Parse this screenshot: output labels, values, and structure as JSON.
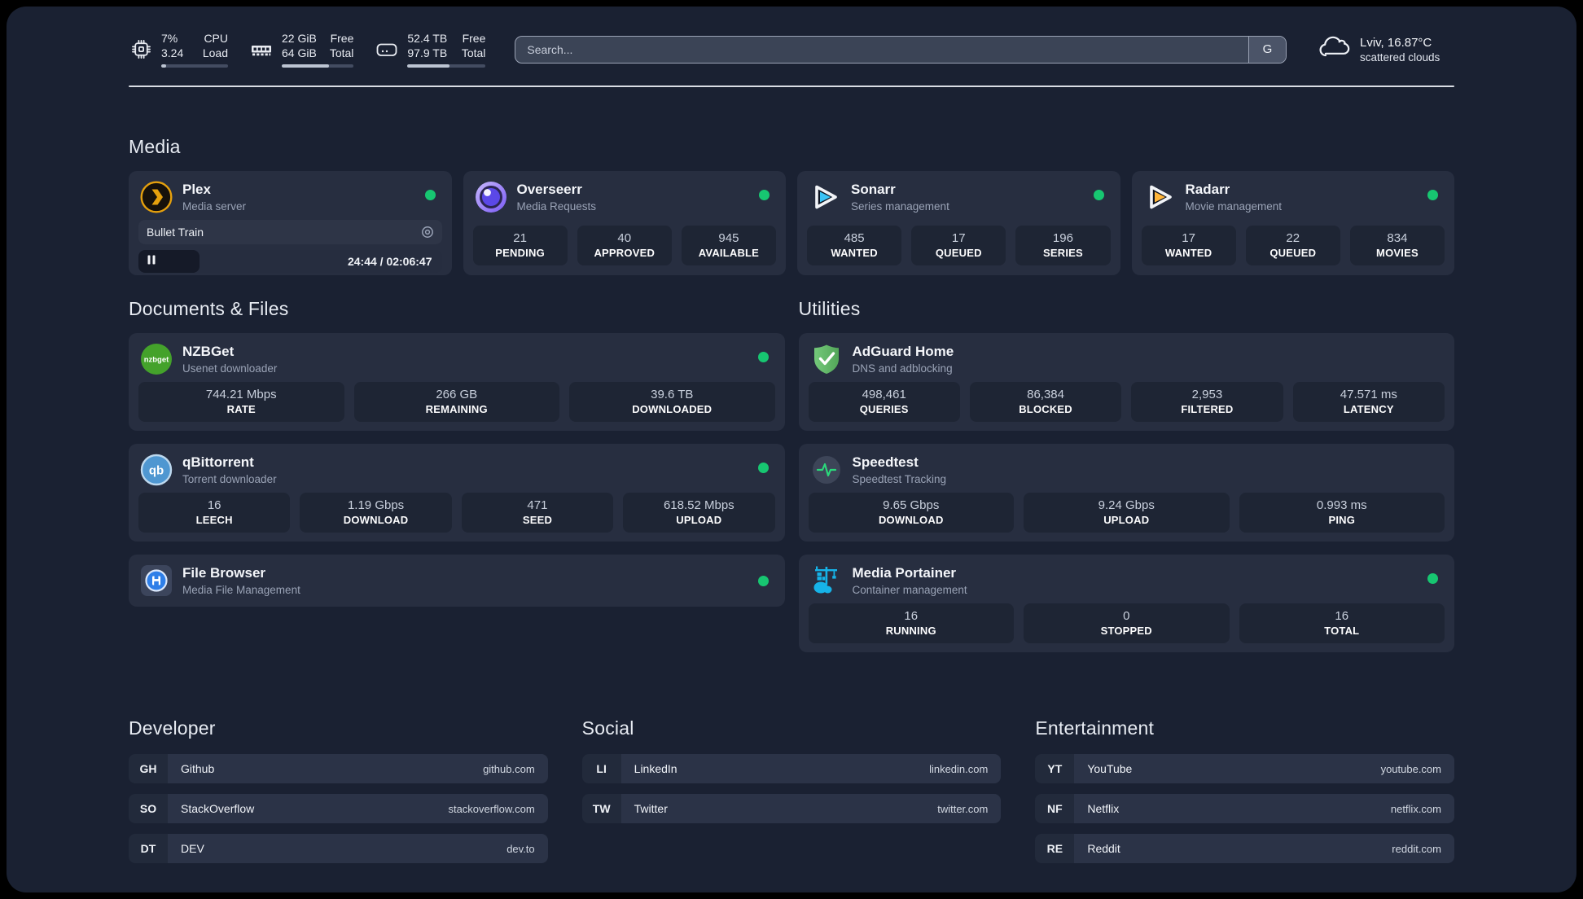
{
  "header": {
    "cpu": {
      "v1": "7%",
      "l1": "CPU",
      "v2": "3.24",
      "l2": "Load",
      "progress": 7
    },
    "ram": {
      "v1": "22 GiB",
      "l1": "Free",
      "v2": "64 GiB",
      "l2": "Total",
      "progress": 66
    },
    "disk": {
      "v1": "52.4 TB",
      "l1": "Free",
      "v2": "97.9 TB",
      "l2": "Total",
      "progress": 54
    },
    "search": {
      "placeholder": "Search...",
      "engine_label": "G"
    },
    "weather": {
      "location_temp": "Lviv, 16.87°C",
      "condition": "scattered clouds"
    }
  },
  "sections": {
    "media": {
      "title": "Media",
      "plex": {
        "name": "Plex",
        "desc": "Media server",
        "now_playing": "Bullet Train",
        "time": "24:44 / 02:06:47",
        "progress_pct": 20
      },
      "overseerr": {
        "name": "Overseerr",
        "desc": "Media Requests",
        "stats": [
          {
            "value": "21",
            "label": "PENDING"
          },
          {
            "value": "40",
            "label": "APPROVED"
          },
          {
            "value": "945",
            "label": "AVAILABLE"
          }
        ]
      },
      "sonarr": {
        "name": "Sonarr",
        "desc": "Series management",
        "stats": [
          {
            "value": "485",
            "label": "WANTED"
          },
          {
            "value": "17",
            "label": "QUEUED"
          },
          {
            "value": "196",
            "label": "SERIES"
          }
        ]
      },
      "radarr": {
        "name": "Radarr",
        "desc": "Movie management",
        "stats": [
          {
            "value": "17",
            "label": "WANTED"
          },
          {
            "value": "22",
            "label": "QUEUED"
          },
          {
            "value": "834",
            "label": "MOVIES"
          }
        ]
      }
    },
    "documents": {
      "title": "Documents & Files",
      "nzbget": {
        "name": "NZBGet",
        "desc": "Usenet downloader",
        "stats": [
          {
            "value": "744.21 Mbps",
            "label": "RATE"
          },
          {
            "value": "266 GB",
            "label": "REMAINING"
          },
          {
            "value": "39.6 TB",
            "label": "DOWNLOADED"
          }
        ]
      },
      "qbittorrent": {
        "name": "qBittorrent",
        "desc": "Torrent downloader",
        "stats": [
          {
            "value": "16",
            "label": "LEECH"
          },
          {
            "value": "1.19 Gbps",
            "label": "DOWNLOAD"
          },
          {
            "value": "471",
            "label": "SEED"
          },
          {
            "value": "618.52 Mbps",
            "label": "UPLOAD"
          }
        ]
      },
      "filebrowser": {
        "name": "File Browser",
        "desc": "Media File Management"
      }
    },
    "utilities": {
      "title": "Utilities",
      "adguard": {
        "name": "AdGuard Home",
        "desc": "DNS and adblocking",
        "stats": [
          {
            "value": "498,461",
            "label": "QUERIES"
          },
          {
            "value": "86,384",
            "label": "BLOCKED"
          },
          {
            "value": "2,953",
            "label": "FILTERED"
          },
          {
            "value": "47.571 ms",
            "label": "LATENCY"
          }
        ]
      },
      "speedtest": {
        "name": "Speedtest",
        "desc": "Speedtest Tracking",
        "stats": [
          {
            "value": "9.65 Gbps",
            "label": "DOWNLOAD"
          },
          {
            "value": "9.24 Gbps",
            "label": "UPLOAD"
          },
          {
            "value": "0.993 ms",
            "label": "PING"
          }
        ]
      },
      "portainer": {
        "name": "Media Portainer",
        "desc": "Container management",
        "stats": [
          {
            "value": "16",
            "label": "RUNNING"
          },
          {
            "value": "0",
            "label": "STOPPED"
          },
          {
            "value": "16",
            "label": "TOTAL"
          }
        ]
      }
    },
    "bookmarks": [
      {
        "title": "Developer",
        "items": [
          {
            "tag": "GH",
            "name": "Github",
            "url": "github.com"
          },
          {
            "tag": "SO",
            "name": "StackOverflow",
            "url": "stackoverflow.com"
          },
          {
            "tag": "DT",
            "name": "DEV",
            "url": "dev.to"
          }
        ]
      },
      {
        "title": "Social",
        "items": [
          {
            "tag": "LI",
            "name": "LinkedIn",
            "url": "linkedin.com"
          },
          {
            "tag": "TW",
            "name": "Twitter",
            "url": "twitter.com"
          }
        ]
      },
      {
        "title": "Entertainment",
        "items": [
          {
            "tag": "YT",
            "name": "YouTube",
            "url": "youtube.com"
          },
          {
            "tag": "NF",
            "name": "Netflix",
            "url": "netflix.com"
          },
          {
            "tag": "RE",
            "name": "Reddit",
            "url": "reddit.com"
          }
        ]
      }
    ]
  },
  "colors": {
    "status_online": "#17c671",
    "accent_plex": "#e5a00d"
  }
}
